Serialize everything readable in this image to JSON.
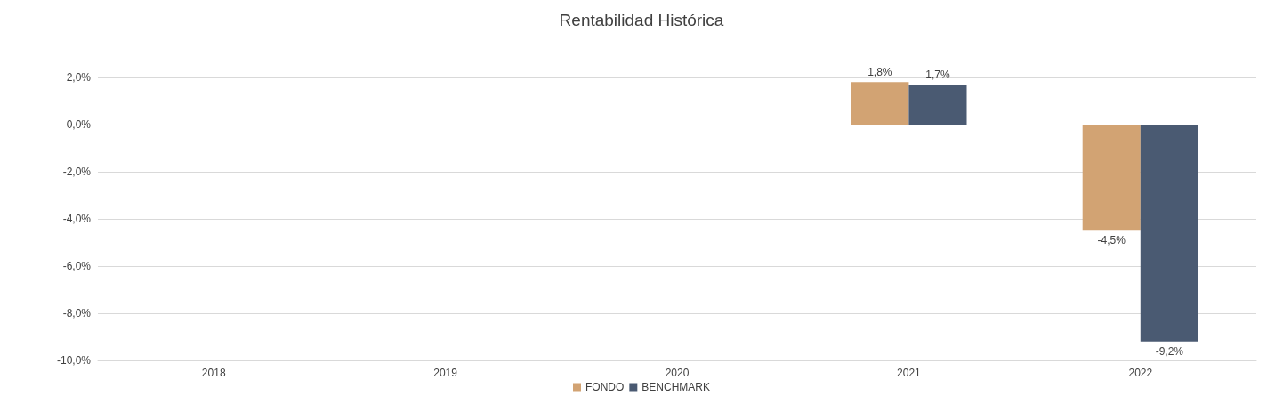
{
  "chart_data": {
    "type": "bar",
    "title": "Rentabilidad Histórica",
    "categories": [
      "2018",
      "2019",
      "2020",
      "2021",
      "2022"
    ],
    "series": [
      {
        "name": "FONDO",
        "color": "#d2a373",
        "values": [
          null,
          null,
          null,
          1.8,
          -4.5
        ],
        "value_labels": [
          null,
          null,
          null,
          "1,8%",
          "-4,5%"
        ]
      },
      {
        "name": "BENCHMARK",
        "color": "#4a5a72",
        "values": [
          null,
          null,
          null,
          1.7,
          -9.2
        ],
        "value_labels": [
          null,
          null,
          null,
          "1,7%",
          "-9,2%"
        ]
      }
    ],
    "ylim": [
      -10,
      2
    ],
    "yticks": [
      {
        "value": -10,
        "label": "-10,0%"
      },
      {
        "value": -8,
        "label": "-8,0%"
      },
      {
        "value": -6,
        "label": "-6,0%"
      },
      {
        "value": -4,
        "label": "-4,0%"
      },
      {
        "value": -2,
        "label": "-2,0%"
      },
      {
        "value": 0,
        "label": "0,0%"
      },
      {
        "value": 2,
        "label": "2,0%"
      }
    ],
    "grid": "y",
    "legend": "bottom"
  }
}
